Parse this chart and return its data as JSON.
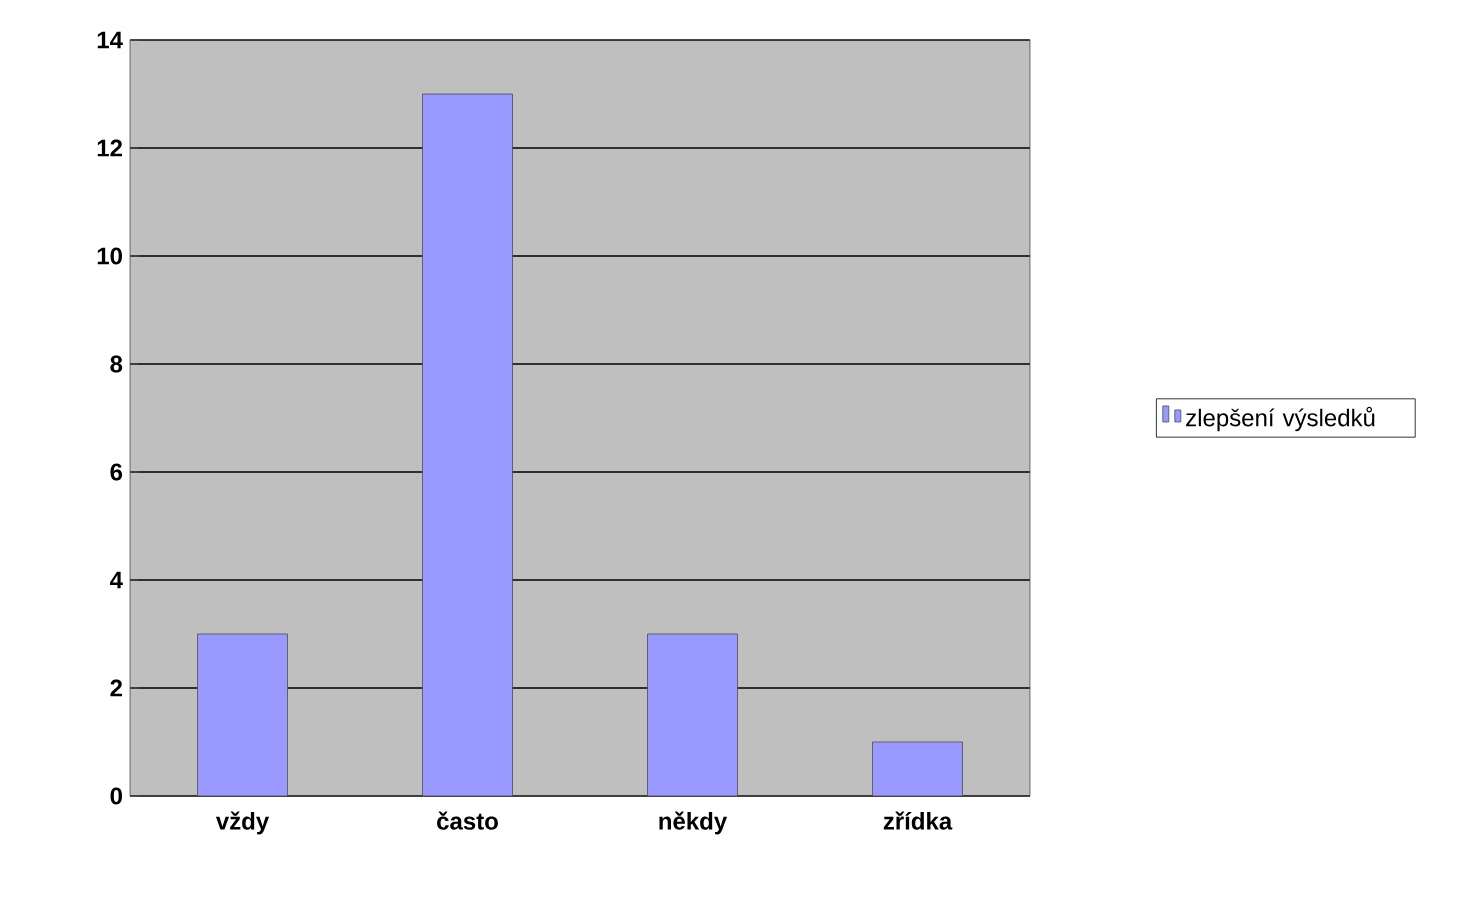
{
  "chart_data": {
    "type": "bar",
    "categories": [
      "vždy",
      "často",
      "někdy",
      "zřídka"
    ],
    "series": [
      {
        "name": "zlepšení výsledků",
        "color": "#9999ff",
        "values": [
          3,
          13,
          3,
          1
        ]
      }
    ],
    "ylim": [
      0,
      14
    ],
    "yticks": [
      0,
      2,
      4,
      6,
      8,
      10,
      12,
      14
    ],
    "grid": "y",
    "legend": "right"
  }
}
